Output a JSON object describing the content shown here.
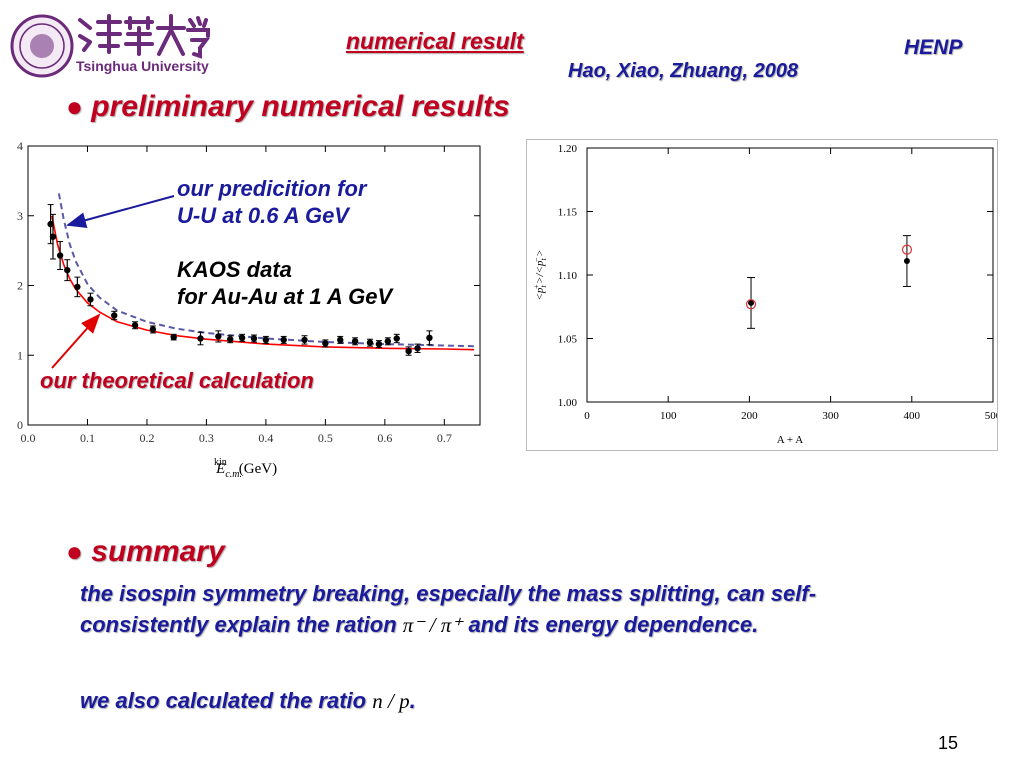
{
  "header": {
    "logo_text": "Tsinghua University",
    "title": "numerical result",
    "group": "HENP",
    "authors": "Hao, Xiao, Zhuang, 2008"
  },
  "section1": {
    "bullet": "●",
    "heading": "preliminary numerical results"
  },
  "annotations": {
    "prediction_line1": "our predicition for",
    "prediction_line2": "U-U at 0.6 A GeV",
    "kaos_line1": "KAOS data",
    "kaos_line2": "for Au-Au at 1 A GeV",
    "theory": "our theoretical calculation"
  },
  "section2": {
    "bullet": "●",
    "heading": "summary",
    "text_part1": "the isospin symmetry breaking, especially the mass splitting, can self-consistently explain the ration",
    "ratio_math": "π⁻ / π⁺",
    "text_part2": "and its energy dependence.",
    "also_text": "we also calculated the ratio",
    "also_math": "n / p",
    "also_end": "."
  },
  "page_number": "15",
  "colors": {
    "red": "#c0001e",
    "blue": "#1a1a9c",
    "theory_curve": "#ff0000",
    "prediction_curve": "#5a5aa8"
  },
  "chart_data": [
    {
      "type": "scatter",
      "title": "",
      "xlabel": "E_c.m.^kin (GeV)",
      "ylabel": "",
      "xlim": [
        0.0,
        0.76
      ],
      "ylim": [
        0,
        4
      ],
      "x_ticks": [
        "0.0",
        "0.1",
        "0.2",
        "0.3",
        "0.4",
        "0.5",
        "0.6",
        "0.7"
      ],
      "y_ticks": [
        "0",
        "1",
        "2",
        "3",
        "4"
      ],
      "series": [
        {
          "name": "KAOS data for Au-Au at 1 A GeV",
          "style": "points",
          "points": [
            {
              "x": 0.038,
              "y": 2.88,
              "err": 0.28
            },
            {
              "x": 0.042,
              "y": 2.7,
              "err": 0.32
            },
            {
              "x": 0.054,
              "y": 2.43,
              "err": 0.2
            },
            {
              "x": 0.066,
              "y": 2.22,
              "err": 0.15
            },
            {
              "x": 0.083,
              "y": 1.98,
              "err": 0.14
            },
            {
              "x": 0.105,
              "y": 1.8,
              "err": 0.09
            },
            {
              "x": 0.145,
              "y": 1.57,
              "err": 0.06
            },
            {
              "x": 0.18,
              "y": 1.43,
              "err": 0.05
            },
            {
              "x": 0.21,
              "y": 1.37,
              "err": 0.05
            },
            {
              "x": 0.245,
              "y": 1.26,
              "err": 0.04
            },
            {
              "x": 0.29,
              "y": 1.24,
              "err": 0.09
            },
            {
              "x": 0.32,
              "y": 1.27,
              "err": 0.08
            },
            {
              "x": 0.34,
              "y": 1.23,
              "err": 0.05
            },
            {
              "x": 0.36,
              "y": 1.25,
              "err": 0.05
            },
            {
              "x": 0.38,
              "y": 1.24,
              "err": 0.05
            },
            {
              "x": 0.4,
              "y": 1.22,
              "err": 0.05
            },
            {
              "x": 0.43,
              "y": 1.22,
              "err": 0.05
            },
            {
              "x": 0.465,
              "y": 1.22,
              "err": 0.06
            },
            {
              "x": 0.5,
              "y": 1.17,
              "err": 0.05
            },
            {
              "x": 0.525,
              "y": 1.22,
              "err": 0.05
            },
            {
              "x": 0.55,
              "y": 1.2,
              "err": 0.05
            },
            {
              "x": 0.575,
              "y": 1.18,
              "err": 0.05
            },
            {
              "x": 0.59,
              "y": 1.16,
              "err": 0.05
            },
            {
              "x": 0.605,
              "y": 1.2,
              "err": 0.05
            },
            {
              "x": 0.62,
              "y": 1.24,
              "err": 0.06
            },
            {
              "x": 0.64,
              "y": 1.06,
              "err": 0.06
            },
            {
              "x": 0.655,
              "y": 1.1,
              "err": 0.06
            },
            {
              "x": 0.675,
              "y": 1.25,
              "err": 0.1
            }
          ]
        },
        {
          "name": "our theoretical calculation",
          "style": "solid-red",
          "x": [
            0.04,
            0.05,
            0.06,
            0.07,
            0.08,
            0.1,
            0.12,
            0.15,
            0.2,
            0.25,
            0.3,
            0.4,
            0.5,
            0.6,
            0.7,
            0.75
          ],
          "y": [
            3.0,
            2.58,
            2.3,
            2.1,
            1.95,
            1.75,
            1.62,
            1.48,
            1.36,
            1.28,
            1.23,
            1.16,
            1.12,
            1.1,
            1.09,
            1.08
          ]
        },
        {
          "name": "our predicition for U-U at 0.6 A GeV",
          "style": "dashed-blue",
          "x": [
            0.052,
            0.06,
            0.07,
            0.08,
            0.1,
            0.12,
            0.15,
            0.2,
            0.25,
            0.3,
            0.4,
            0.5,
            0.6,
            0.7,
            0.75
          ],
          "y": [
            3.32,
            2.95,
            2.6,
            2.35,
            2.02,
            1.83,
            1.64,
            1.48,
            1.38,
            1.32,
            1.24,
            1.19,
            1.16,
            1.14,
            1.13
          ]
        }
      ]
    },
    {
      "type": "scatter",
      "title": "",
      "xlabel": "A + A",
      "ylabel": "<p_t^+>/<p_t^->",
      "xlim": [
        0,
        500
      ],
      "ylim": [
        1.0,
        1.2
      ],
      "x_ticks": [
        "0",
        "100",
        "200",
        "300",
        "400",
        "500"
      ],
      "y_ticks": [
        "1.00",
        "1.05",
        "1.10",
        "1.15",
        "1.20"
      ],
      "series": [
        {
          "name": "",
          "style": "filled-black",
          "points": [
            {
              "x": 202,
              "y": 1.078,
              "err": 0.02
            },
            {
              "x": 394,
              "y": 1.111,
              "err": 0.02
            }
          ]
        },
        {
          "name": "",
          "style": "open-red",
          "points": [
            {
              "x": 202,
              "y": 1.077
            },
            {
              "x": 394,
              "y": 1.12
            }
          ]
        }
      ]
    }
  ]
}
